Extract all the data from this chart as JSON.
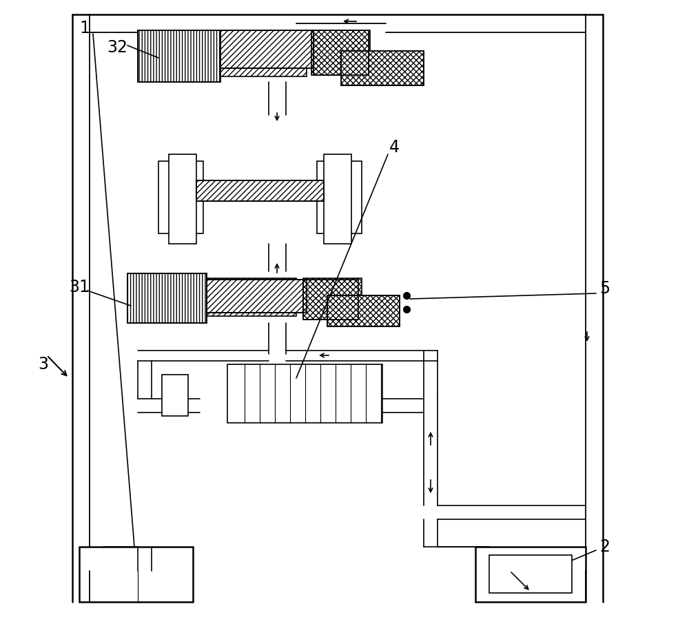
{
  "bg_color": "#ffffff",
  "lw_outer": 1.8,
  "lw_inner": 1.2,
  "lw_thin": 0.8,
  "fig_width": 10.0,
  "fig_height": 9.09
}
